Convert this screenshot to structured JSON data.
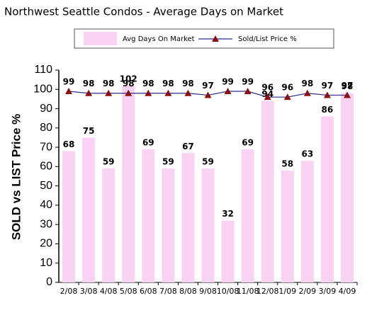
{
  "chart_data": {
    "type": "bar",
    "title": "Northwest Seattle Condos - Average Days on Market",
    "y_label": "SOLD vs LIST Price %",
    "categories": [
      "2/08",
      "3/08",
      "4/08",
      "5/08",
      "6/08",
      "7/08",
      "8/08",
      "9/08",
      "10/08",
      "11/08",
      "12/08",
      "1/09",
      "2/09",
      "3/09",
      "4/09"
    ],
    "series": [
      {
        "name": "Avg Days On Market",
        "type": "bar",
        "color": "#f9d2f4",
        "values": [
          68,
          75,
          59,
          102,
          69,
          59,
          67,
          59,
          32,
          69,
          94,
          58,
          63,
          86,
          98
        ]
      },
      {
        "name": "Sold/List Price %",
        "type": "line",
        "color": "#2b2b8c",
        "marker_color": "#8b1010",
        "values": [
          99,
          98,
          98,
          98,
          98,
          98,
          98,
          97,
          99,
          99,
          96,
          96,
          98,
          97,
          97
        ]
      }
    ],
    "ylim": [
      0,
      110
    ],
    "yticks": [
      0,
      10,
      20,
      30,
      40,
      50,
      60,
      70,
      80,
      90,
      100,
      110
    ],
    "grid": false
  }
}
